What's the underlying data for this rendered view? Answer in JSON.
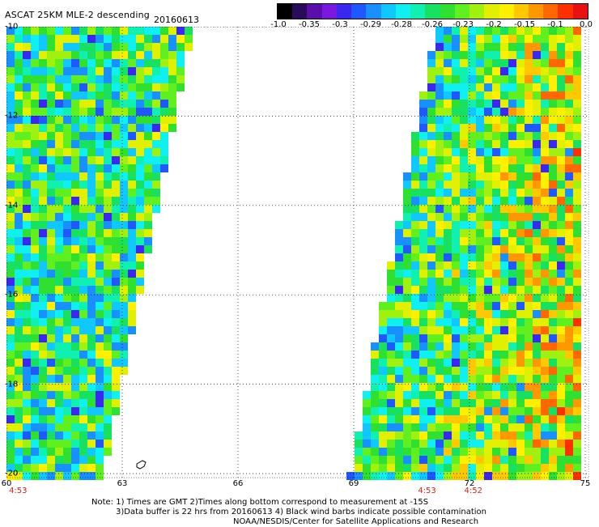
{
  "header": {
    "title": "ASCAT 25KM MLE-2 descending",
    "date": "20160613"
  },
  "colorbar": {
    "tick_labels": [
      "-1.0",
      "-0.35",
      "-0.3",
      "-0.29",
      "-0.28",
      "-0.26",
      "-0.23",
      "-0.2",
      "-0.15",
      "-0.1",
      "0.0"
    ],
    "colors": [
      "#000000",
      "#2a0a5a",
      "#5a10a8",
      "#7a18e0",
      "#3a28f0",
      "#2058ff",
      "#1890ff",
      "#10c8ff",
      "#10f0f0",
      "#10f0b0",
      "#18e060",
      "#30e030",
      "#60f020",
      "#a0f010",
      "#e0f000",
      "#fff000",
      "#ffc800",
      "#ff9800",
      "#ff6800",
      "#ff3000",
      "#e81010"
    ]
  },
  "map": {
    "lat_labels": [
      "-10",
      "-12",
      "-14",
      "-16",
      "-18",
      "-20"
    ],
    "lon_labels": [
      "60",
      "63",
      "66",
      "69",
      "72",
      "75"
    ],
    "time_labels": [
      "4:53",
      "4:53",
      "4:52"
    ],
    "lat_range": [
      -20,
      -10
    ],
    "lon_range": [
      60,
      75
    ],
    "grid": "dotted",
    "swaths": [
      {
        "name": "west",
        "lon_min": 60,
        "lon_max_top": 64.7,
        "lon_max_bottom": 62.4
      },
      {
        "name": "east",
        "lon_min_top": 71.2,
        "lon_min_bottom": 69.0,
        "lon_max": 75
      }
    ]
  },
  "notes": {
    "line1": "Note: 1) Times are GMT 2)Times along bottom correspond to measurement at -15S",
    "line2": "3)Data buffer is 22 hrs from 20160613 4) Black wind barbs indicate possible contamination",
    "line3": "NOAA/NESDIS/Center for Satellite Applications and Research"
  }
}
